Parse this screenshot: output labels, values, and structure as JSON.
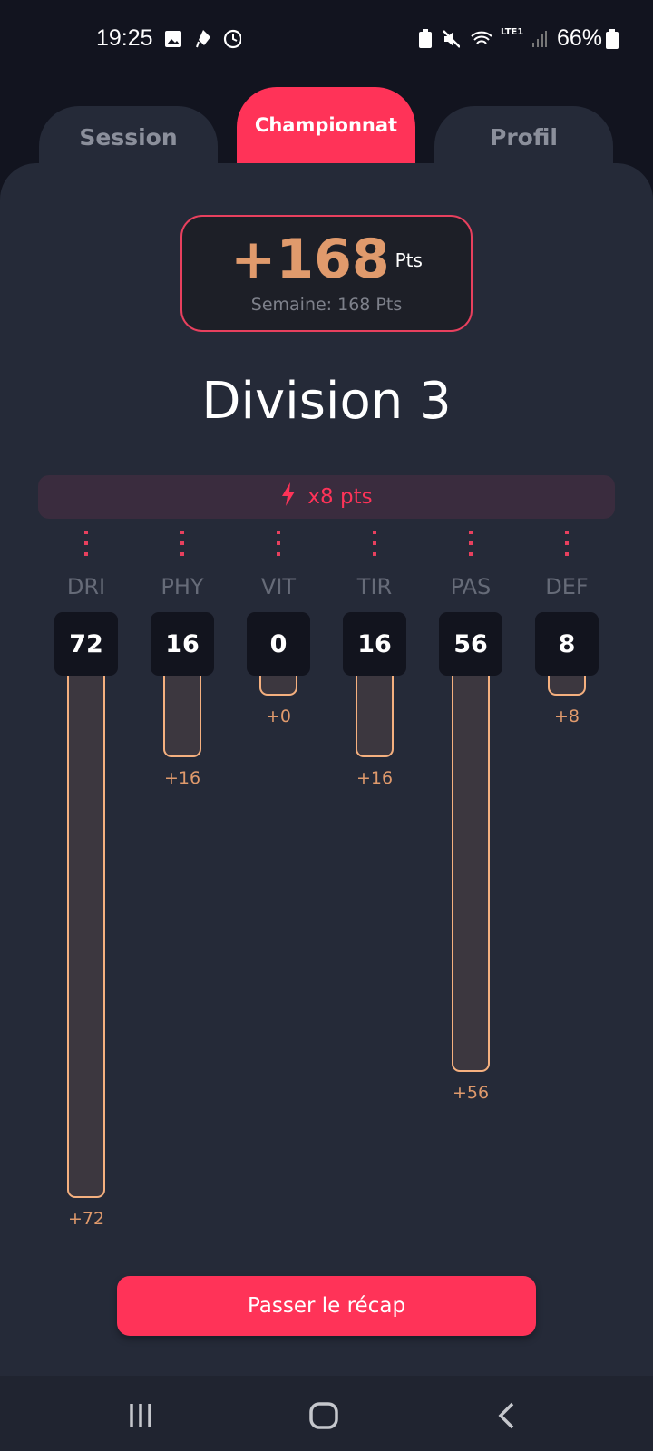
{
  "status_bar": {
    "time": "19:25",
    "battery": "66%",
    "network": "LTE1",
    "icons": [
      "image-icon",
      "pen-icon",
      "alarm-icon",
      "battery-saver-icon",
      "mute-icon",
      "wifi-icon",
      "signal-icon",
      "battery-icon"
    ]
  },
  "tabs": [
    {
      "label": "Session",
      "active": false
    },
    {
      "label": "Championnat",
      "active": true
    },
    {
      "label": "Profil",
      "active": false
    }
  ],
  "points": {
    "value": "+168",
    "unit": "Pts",
    "week": "Semaine: 168 Pts"
  },
  "division": "Division 3",
  "multiplier": {
    "icon": "lightning-icon",
    "label": "x8 pts"
  },
  "stats": [
    {
      "label": "DRI",
      "value": 72,
      "delta": "+72"
    },
    {
      "label": "PHY",
      "value": 16,
      "delta": "+16"
    },
    {
      "label": "VIT",
      "value": 0,
      "delta": "+0"
    },
    {
      "label": "TIR",
      "value": 16,
      "delta": "+16"
    },
    {
      "label": "PAS",
      "value": 56,
      "delta": "+56"
    },
    {
      "label": "DEF",
      "value": 8,
      "delta": "+8"
    }
  ],
  "cta": "Passer le récap",
  "colors": {
    "accent": "#ff3358",
    "points": "#e09a6c",
    "background": "#12141f",
    "panel": "#252a38"
  }
}
